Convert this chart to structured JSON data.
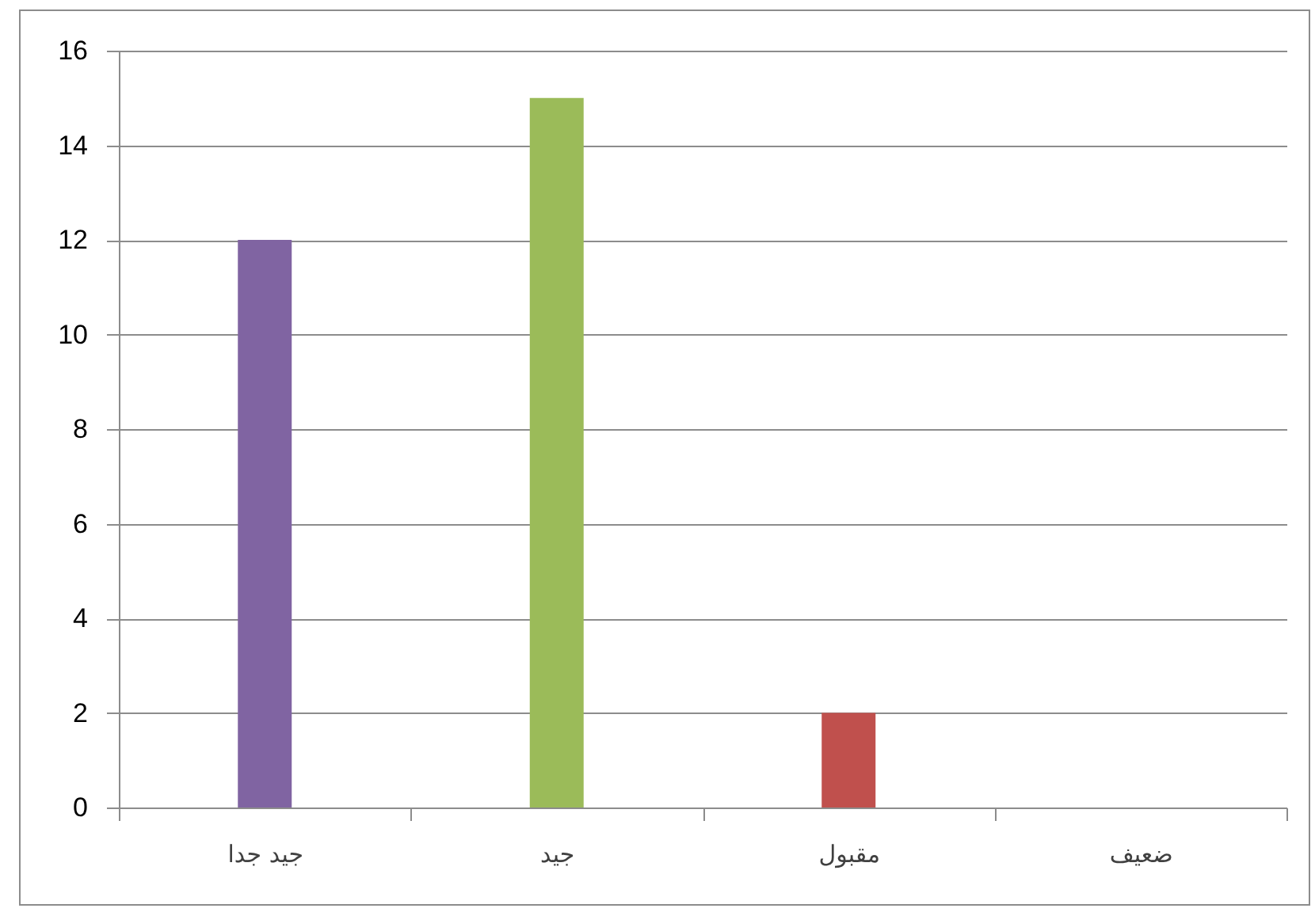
{
  "chart_data": {
    "type": "bar",
    "categories": [
      "جيد جدا",
      "جيد",
      "مقبول",
      "ضعيف"
    ],
    "values": [
      12,
      15,
      2,
      0
    ],
    "colors": [
      "#8064a2",
      "#9bbb59",
      "#c0504d",
      "#4bacc6"
    ],
    "ylim": [
      0,
      16
    ],
    "yticks": [
      0,
      2,
      4,
      6,
      8,
      10,
      12,
      14,
      16
    ],
    "grid": "y",
    "legend": false
  }
}
